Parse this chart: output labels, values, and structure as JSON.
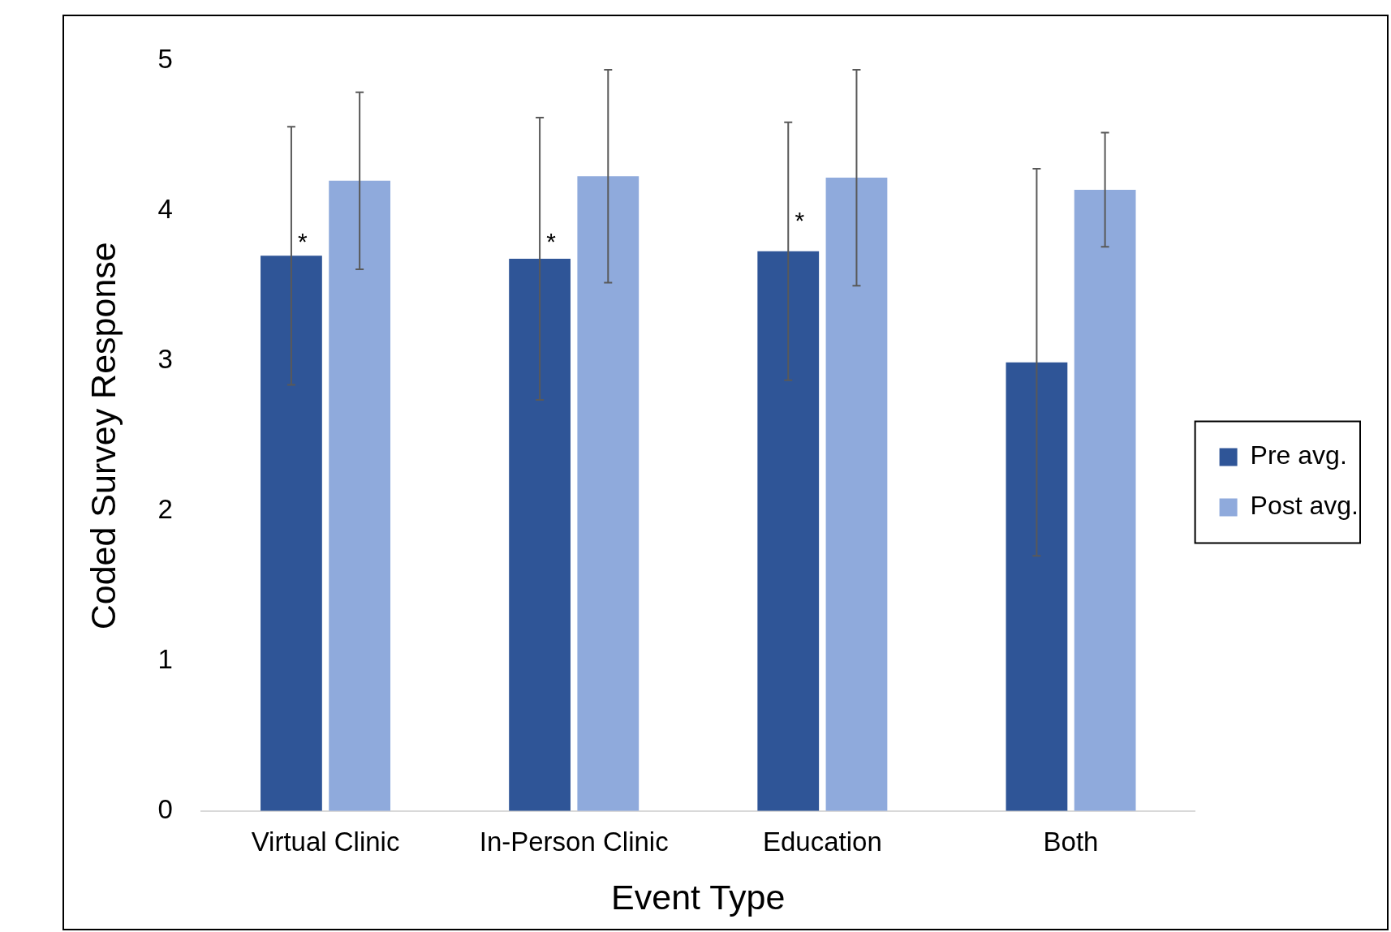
{
  "chart_data": {
    "type": "bar",
    "xlabel": "Event Type",
    "ylabel": "Coded Survey Response",
    "categories": [
      "Virtual Clinic",
      "In-Person Clinic",
      "Education",
      "Both"
    ],
    "series": [
      {
        "name": "Pre avg.",
        "color": "#2f5597",
        "values": [
          3.7,
          3.68,
          3.73,
          2.99
        ],
        "errors": [
          0.86,
          0.94,
          0.86,
          1.29
        ]
      },
      {
        "name": "Post avg.",
        "color": "#8faadc",
        "values": [
          4.2,
          4.23,
          4.22,
          4.14
        ],
        "errors": [
          0.59,
          0.71,
          0.72,
          0.38
        ]
      }
    ],
    "annotations": [
      {
        "text": "*",
        "x": "Virtual Clinic",
        "y": 3.83
      },
      {
        "text": "*",
        "x": "In-Person Clinic",
        "y": 3.83
      },
      {
        "text": "*",
        "x": "Education",
        "y": 3.97
      }
    ],
    "ylim": [
      0,
      5
    ],
    "yticks": [
      0,
      1,
      2,
      3,
      4,
      5
    ],
    "grid": false,
    "legend": "right"
  }
}
